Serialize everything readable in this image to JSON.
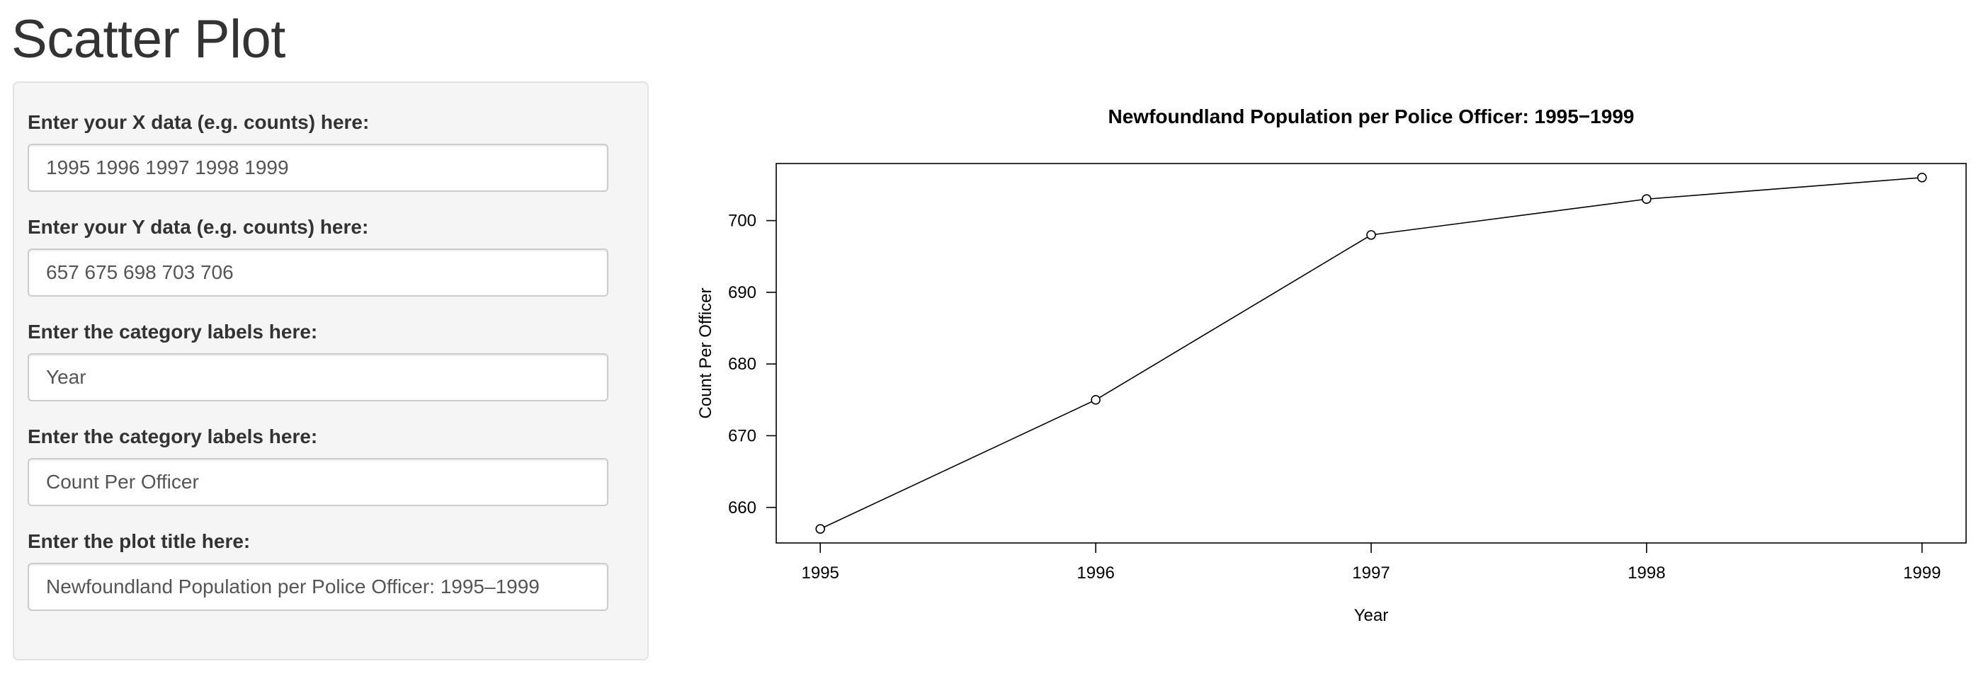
{
  "page": {
    "title": "Scatter Plot"
  },
  "sidebar": {
    "fields": [
      {
        "label": "Enter your X data (e.g. counts) here:",
        "value": "1995 1996 1997 1998 1999"
      },
      {
        "label": "Enter your Y data (e.g. counts) here:",
        "value": "657 675 698 703 706"
      },
      {
        "label": "Enter the category labels here:",
        "value": "Year"
      },
      {
        "label": "Enter the category labels here:",
        "value": "Count Per Officer"
      },
      {
        "label": "Enter the plot title here:",
        "value": "Newfoundland Population per Police Officer: 1995–1999"
      }
    ]
  },
  "chart_data": {
    "type": "line",
    "title": "Newfoundland Population per Police Officer: 1995−1999",
    "xlabel": "Year",
    "ylabel": "Count Per Officer",
    "x": [
      1995,
      1996,
      1997,
      1998,
      1999
    ],
    "series": [
      {
        "values": [
          657,
          675,
          698,
          703,
          706
        ]
      }
    ],
    "xticks": [
      1995,
      1996,
      1997,
      1998,
      1999
    ],
    "yticks": [
      660,
      670,
      680,
      690,
      700
    ],
    "xlim": [
      1994.84,
      1999.16
    ],
    "ylim": [
      655.04,
      707.96
    ],
    "markers": "open-circle",
    "grid": false,
    "legend": "none",
    "line_color": "#000000"
  }
}
